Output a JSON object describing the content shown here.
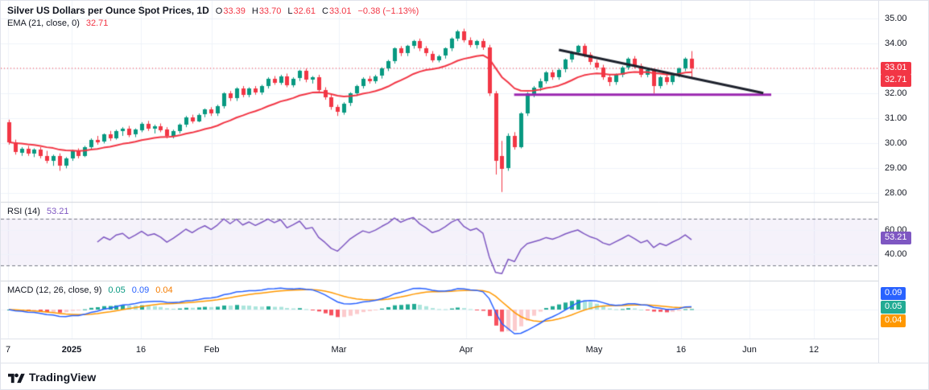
{
  "header": {
    "title": "Silver US Dollars per Ounce Spot Prices, 1D",
    "o_label": "O",
    "h_label": "H",
    "l_label": "L",
    "c_label": "C",
    "o": "33.39",
    "h": "33.70",
    "l": "32.61",
    "c": "33.01",
    "change": "−0.38 (−1.13%)"
  },
  "legends": {
    "ema_label": "EMA (21, close, 0)",
    "ema_value": "32.71",
    "rsi_label": "RSI (14)",
    "rsi_value": "53.21",
    "macd_label": "MACD (12, 26, close, 9)",
    "macd_hist": "0.05",
    "macd_value": "0.09",
    "macd_signal": "0.04"
  },
  "footer": {
    "brand": "TradingView"
  },
  "colors": {
    "up": "#089981",
    "down": "#f23645",
    "ema": "#f23645",
    "last_price_line": "#f23645",
    "rsi_line": "#7e57c2",
    "rsi_band_fill": "rgba(126,87,194,0.08)",
    "rsi_band_line": "#787b86",
    "macd_line": "#2962ff",
    "signal_line": "#ff9800",
    "hist_up": "#22ab94",
    "hist_up_fade": "#ace5dc",
    "hist_down": "#f7525f",
    "hist_down_fade": "#fccbcd",
    "grid": "#f0f3fa",
    "divider": "#d1d4dc",
    "trendline": "#1e222d",
    "support": "#9c27b0"
  },
  "chart_data": {
    "type": "candlestick",
    "title": "Silver US Dollars per Ounce Spot Prices",
    "interval": "1D",
    "ylim": [
      27.85,
      35.33
    ],
    "gridline_prices": [
      28,
      29,
      30,
      31,
      32,
      33,
      34,
      35
    ],
    "price_axis": {
      "labels": [
        {
          "text": "35.00",
          "price": 35.0
        },
        {
          "text": "34.00",
          "price": 34.0
        },
        {
          "text": "32.00",
          "price": 32.0
        },
        {
          "text": "31.00",
          "price": 31.0
        },
        {
          "text": "30.00",
          "price": 30.0
        },
        {
          "text": "29.00",
          "price": 29.0
        },
        {
          "text": "28.00",
          "price": 28.0
        }
      ],
      "badges": [
        {
          "text": "33.01",
          "price": 33.01,
          "bg": "#f23645"
        },
        {
          "text": "32.71",
          "price": 32.71,
          "bg": "#f23645"
        }
      ]
    },
    "rsi_axis": {
      "labels": [
        {
          "text": "60.00",
          "value": 60
        },
        {
          "text": "40.00",
          "value": 40
        }
      ],
      "badge": {
        "text": "53.21",
        "value": 53.21,
        "bg": "#7e57c2"
      },
      "bands": [
        30,
        70
      ],
      "range": [
        20,
        80
      ]
    },
    "macd_axis": {
      "badges": [
        {
          "text": "0.09",
          "bg": "#2962ff"
        },
        {
          "text": "0.05",
          "bg": "#22ab94"
        },
        {
          "text": "0.04",
          "bg": "#ff9800"
        }
      ]
    },
    "time_axis": [
      {
        "label": "7",
        "x": 0.008
      },
      {
        "label": "2025",
        "x": 0.081,
        "bold": true
      },
      {
        "label": "16",
        "x": 0.16
      },
      {
        "label": "Feb",
        "x": 0.24
      },
      {
        "label": "Mar",
        "x": 0.385
      },
      {
        "label": "Apr",
        "x": 0.53
      },
      {
        "label": "May",
        "x": 0.676
      },
      {
        "label": "16",
        "x": 0.775
      },
      {
        "label": "Jun",
        "x": 0.853
      },
      {
        "label": "12",
        "x": 0.927
      }
    ],
    "indicators": {
      "ema_period": 21,
      "rsi_period": 14,
      "macd_params": [
        12,
        26,
        9
      ],
      "ema_last": 32.71,
      "rsi_last": 53.21,
      "macd_last": {
        "macd": 0.09,
        "signal": 0.04,
        "hist": 0.05
      }
    },
    "annotations": {
      "last_price_line": {
        "price": 33.01,
        "style": "dotted"
      },
      "support_line": {
        "price": 31.95,
        "x1_frac": 0.585,
        "x2_frac": 0.878,
        "width": 3
      },
      "trendline": {
        "x1_frac": 0.636,
        "price1": 33.75,
        "x2_frac": 0.869,
        "price2": 32.02,
        "width": 3
      }
    },
    "candles": [
      [
        30.85,
        30.95,
        29.95,
        30.05
      ],
      [
        30.05,
        30.15,
        29.55,
        29.65
      ],
      [
        29.65,
        29.85,
        29.5,
        29.8
      ],
      [
        29.8,
        29.9,
        29.5,
        29.6
      ],
      [
        29.6,
        29.8,
        29.45,
        29.75
      ],
      [
        29.75,
        29.85,
        29.4,
        29.5
      ],
      [
        29.5,
        29.7,
        29.2,
        29.3
      ],
      [
        29.3,
        29.55,
        29.1,
        29.5
      ],
      [
        29.5,
        29.6,
        28.9,
        29.1
      ],
      [
        29.1,
        29.45,
        29.0,
        29.4
      ],
      [
        29.4,
        29.75,
        29.3,
        29.7
      ],
      [
        29.7,
        29.8,
        29.4,
        29.5
      ],
      [
        29.5,
        29.9,
        29.45,
        29.85
      ],
      [
        29.85,
        30.2,
        29.75,
        30.15
      ],
      [
        30.15,
        30.3,
        29.95,
        30.05
      ],
      [
        30.05,
        30.4,
        30.0,
        30.35
      ],
      [
        30.35,
        30.5,
        30.1,
        30.2
      ],
      [
        30.2,
        30.55,
        30.15,
        30.5
      ],
      [
        30.5,
        30.65,
        30.3,
        30.6
      ],
      [
        30.6,
        30.7,
        30.25,
        30.35
      ],
      [
        30.35,
        30.6,
        30.25,
        30.55
      ],
      [
        30.55,
        30.85,
        30.45,
        30.8
      ],
      [
        30.8,
        30.9,
        30.5,
        30.6
      ],
      [
        30.6,
        30.75,
        30.4,
        30.7
      ],
      [
        30.7,
        30.8,
        30.45,
        30.55
      ],
      [
        30.55,
        30.65,
        30.2,
        30.3
      ],
      [
        30.3,
        30.55,
        30.2,
        30.5
      ],
      [
        30.5,
        30.8,
        30.4,
        30.75
      ],
      [
        30.75,
        31.1,
        30.65,
        31.05
      ],
      [
        31.05,
        31.15,
        30.8,
        30.9
      ],
      [
        30.9,
        31.2,
        30.85,
        31.15
      ],
      [
        31.15,
        31.4,
        31.05,
        31.35
      ],
      [
        31.35,
        31.45,
        31.1,
        31.2
      ],
      [
        31.2,
        31.55,
        31.1,
        31.5
      ],
      [
        31.5,
        32.05,
        31.4,
        32.0
      ],
      [
        32.0,
        32.1,
        31.7,
        31.8
      ],
      [
        31.8,
        32.25,
        31.7,
        32.2
      ],
      [
        32.2,
        32.3,
        31.85,
        31.95
      ],
      [
        31.95,
        32.25,
        31.85,
        32.2
      ],
      [
        32.2,
        32.3,
        31.95,
        32.05
      ],
      [
        32.05,
        32.35,
        31.95,
        32.3
      ],
      [
        32.3,
        32.65,
        32.2,
        32.6
      ],
      [
        32.6,
        32.7,
        32.35,
        32.45
      ],
      [
        32.45,
        32.75,
        32.35,
        32.7
      ],
      [
        32.7,
        32.8,
        32.25,
        32.35
      ],
      [
        32.35,
        32.65,
        32.25,
        32.6
      ],
      [
        32.6,
        32.95,
        32.5,
        32.9
      ],
      [
        32.9,
        33.0,
        32.45,
        32.55
      ],
      [
        32.55,
        32.7,
        32.4,
        32.65
      ],
      [
        32.65,
        32.75,
        32.05,
        32.15
      ],
      [
        32.15,
        32.25,
        31.75,
        31.85
      ],
      [
        31.85,
        31.95,
        31.35,
        31.45
      ],
      [
        31.45,
        31.55,
        31.1,
        31.25
      ],
      [
        31.25,
        31.65,
        31.15,
        31.6
      ],
      [
        31.6,
        32.05,
        31.5,
        32.0
      ],
      [
        32.0,
        32.35,
        31.9,
        32.3
      ],
      [
        32.3,
        32.65,
        32.2,
        32.6
      ],
      [
        32.6,
        32.7,
        32.4,
        32.5
      ],
      [
        32.5,
        32.75,
        32.4,
        32.7
      ],
      [
        32.7,
        33.05,
        32.6,
        33.0
      ],
      [
        33.0,
        33.35,
        32.9,
        33.3
      ],
      [
        33.3,
        33.85,
        33.2,
        33.8
      ],
      [
        33.8,
        33.9,
        33.5,
        33.6
      ],
      [
        33.6,
        33.95,
        33.5,
        33.9
      ],
      [
        33.9,
        34.15,
        33.8,
        34.1
      ],
      [
        34.1,
        34.2,
        33.7,
        33.8
      ],
      [
        33.8,
        33.9,
        33.5,
        33.6
      ],
      [
        33.6,
        33.7,
        33.25,
        33.35
      ],
      [
        33.35,
        33.55,
        33.25,
        33.5
      ],
      [
        33.5,
        33.85,
        33.4,
        33.8
      ],
      [
        33.8,
        34.25,
        33.7,
        34.2
      ],
      [
        34.2,
        34.55,
        34.1,
        34.5
      ],
      [
        34.5,
        34.6,
        34.05,
        34.15
      ],
      [
        34.15,
        34.25,
        33.85,
        33.95
      ],
      [
        33.95,
        34.15,
        33.8,
        34.1
      ],
      [
        34.1,
        34.2,
        33.75,
        33.85
      ],
      [
        33.85,
        33.95,
        31.9,
        32.0
      ],
      [
        32.0,
        32.1,
        28.75,
        29.3
      ],
      [
        29.5,
        30.1,
        28.05,
        29.0
      ],
      [
        29.0,
        30.4,
        28.9,
        30.3
      ],
      [
        30.3,
        30.45,
        29.75,
        29.85
      ],
      [
        29.85,
        31.25,
        29.8,
        31.2
      ],
      [
        31.2,
        32.05,
        31.1,
        32.0
      ],
      [
        32.0,
        32.3,
        31.85,
        32.25
      ],
      [
        32.25,
        32.6,
        32.1,
        32.5
      ],
      [
        32.5,
        32.9,
        32.4,
        32.85
      ],
      [
        32.85,
        32.95,
        32.55,
        32.65
      ],
      [
        32.65,
        33.0,
        32.55,
        32.95
      ],
      [
        32.95,
        33.4,
        32.85,
        33.35
      ],
      [
        33.35,
        33.7,
        33.25,
        33.65
      ],
      [
        33.65,
        33.95,
        33.55,
        33.9
      ],
      [
        33.9,
        34.0,
        33.45,
        33.55
      ],
      [
        33.55,
        33.65,
        33.15,
        33.25
      ],
      [
        33.25,
        33.35,
        32.95,
        33.05
      ],
      [
        33.05,
        33.15,
        32.55,
        32.65
      ],
      [
        32.65,
        32.75,
        32.3,
        32.45
      ],
      [
        32.45,
        32.8,
        32.35,
        32.75
      ],
      [
        32.75,
        33.1,
        32.65,
        33.05
      ],
      [
        33.05,
        33.45,
        32.95,
        33.4
      ],
      [
        33.4,
        33.5,
        33.0,
        33.1
      ],
      [
        33.1,
        33.2,
        32.65,
        32.75
      ],
      [
        32.75,
        33.0,
        32.65,
        32.95
      ],
      [
        32.95,
        33.0,
        32.0,
        32.3
      ],
      [
        32.3,
        32.7,
        32.2,
        32.65
      ],
      [
        32.65,
        32.75,
        32.35,
        32.45
      ],
      [
        32.45,
        32.8,
        32.35,
        32.75
      ],
      [
        32.75,
        33.05,
        32.65,
        33.0
      ],
      [
        33.0,
        33.45,
        32.9,
        33.39
      ],
      [
        33.39,
        33.7,
        32.61,
        33.01
      ]
    ]
  }
}
